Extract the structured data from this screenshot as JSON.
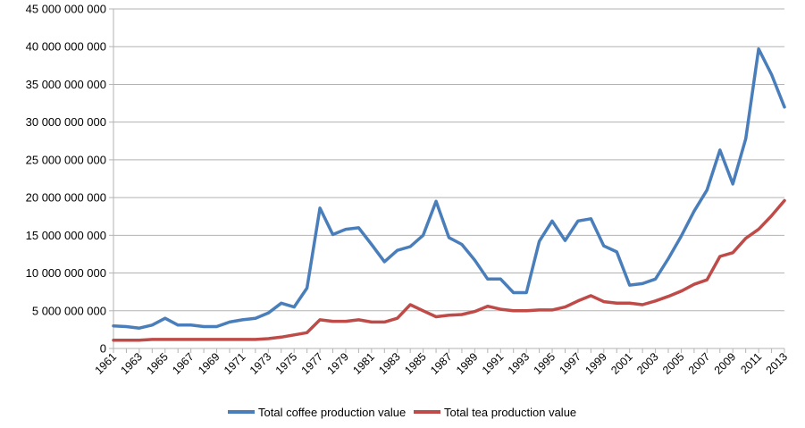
{
  "chart_data": {
    "type": "line",
    "title": "",
    "xlabel": "",
    "ylabel": "",
    "ylim": [
      0,
      45000000000
    ],
    "yticks": [
      0,
      5000000000,
      10000000000,
      15000000000,
      20000000000,
      25000000000,
      30000000000,
      35000000000,
      40000000000,
      45000000000
    ],
    "ytick_labels": [
      "0",
      "5 000 000 000",
      "10 000 000 000",
      "15 000 000 000",
      "20 000 000 000",
      "25 000 000 000",
      "30 000 000 000",
      "35 000 000 000",
      "40 000 000 000",
      "45 000 000 000"
    ],
    "xtick_labels": [
      "1961",
      "1963",
      "1965",
      "1967",
      "1969",
      "1971",
      "1973",
      "1975",
      "1977",
      "1979",
      "1981",
      "1983",
      "1985",
      "1987",
      "1989",
      "1991",
      "1993",
      "1995",
      "1997",
      "1999",
      "2001",
      "2003",
      "2005",
      "2007",
      "2009",
      "2011",
      "2013"
    ],
    "grid": "horizontal",
    "legend_position": "bottom",
    "x": [
      1961,
      1962,
      1963,
      1964,
      1965,
      1966,
      1967,
      1968,
      1969,
      1970,
      1971,
      1972,
      1973,
      1974,
      1975,
      1976,
      1977,
      1978,
      1979,
      1980,
      1981,
      1982,
      1983,
      1984,
      1985,
      1986,
      1987,
      1988,
      1989,
      1990,
      1991,
      1992,
      1993,
      1994,
      1995,
      1996,
      1997,
      1998,
      1999,
      2000,
      2001,
      2002,
      2003,
      2004,
      2005,
      2006,
      2007,
      2008,
      2009,
      2010,
      2011,
      2012,
      2013
    ],
    "series": [
      {
        "name": "Total coffee production value",
        "color": "#4a7ebb",
        "values": [
          3000000000,
          2900000000,
          2700000000,
          3100000000,
          4000000000,
          3100000000,
          3100000000,
          2900000000,
          2900000000,
          3500000000,
          3800000000,
          4000000000,
          4700000000,
          6000000000,
          5500000000,
          8000000000,
          18600000000,
          15100000000,
          15800000000,
          16000000000,
          13800000000,
          11500000000,
          13000000000,
          13500000000,
          15000000000,
          19500000000,
          14700000000,
          13800000000,
          11700000000,
          9200000000,
          9200000000,
          7400000000,
          7400000000,
          14200000000,
          16900000000,
          14300000000,
          16900000000,
          17200000000,
          13600000000,
          12800000000,
          8400000000,
          8600000000,
          9200000000,
          11900000000,
          14900000000,
          18200000000,
          21000000000,
          26300000000,
          21800000000,
          27800000000,
          39700000000,
          36300000000,
          32000000000
        ]
      },
      {
        "name": "Total tea production value",
        "color": "#be4b48",
        "values": [
          1100000000,
          1100000000,
          1100000000,
          1200000000,
          1200000000,
          1200000000,
          1200000000,
          1200000000,
          1200000000,
          1200000000,
          1200000000,
          1200000000,
          1300000000,
          1500000000,
          1800000000,
          2100000000,
          3800000000,
          3600000000,
          3600000000,
          3800000000,
          3500000000,
          3500000000,
          4000000000,
          5800000000,
          5000000000,
          4200000000,
          4400000000,
          4500000000,
          4900000000,
          5600000000,
          5200000000,
          5000000000,
          5000000000,
          5100000000,
          5100000000,
          5500000000,
          6300000000,
          7000000000,
          6200000000,
          6000000000,
          6000000000,
          5800000000,
          6300000000,
          6900000000,
          7600000000,
          8500000000,
          9100000000,
          12200000000,
          12700000000,
          14600000000,
          15800000000,
          17600000000,
          19600000000
        ]
      }
    ]
  }
}
